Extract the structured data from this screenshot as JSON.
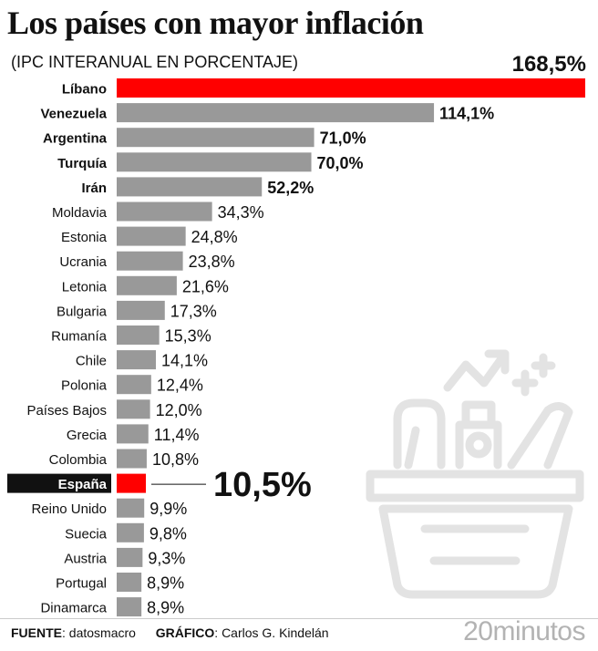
{
  "chart_data": {
    "type": "bar",
    "orientation": "horizontal",
    "title": "Los países con mayor inflación",
    "subtitle": "(IPC INTERANUAL EN PORCENTAJE)",
    "categories": [
      "Líbano",
      "Venezuela",
      "Argentina",
      "Turquía",
      "Irán",
      "Moldavia",
      "Estonia",
      "Ucrania",
      "Letonia",
      "Bulgaria",
      "Rumanía",
      "Chile",
      "Polonia",
      "Países Bajos",
      "Grecia",
      "Colombia",
      "España",
      "Reino Unido",
      "Suecia",
      "Austria",
      "Portugal",
      "Dinamarca"
    ],
    "values": [
      168.5,
      114.1,
      71.0,
      70.0,
      52.2,
      34.3,
      24.8,
      23.8,
      21.6,
      17.3,
      15.3,
      14.1,
      12.4,
      12.0,
      11.4,
      10.8,
      10.5,
      9.9,
      9.8,
      9.3,
      8.9,
      8.9
    ],
    "value_labels": [
      "168,5%",
      "114,1%",
      "71,0%",
      "70,0%",
      "52,2%",
      "34,3%",
      "24,8%",
      "23,8%",
      "21,6%",
      "17,3%",
      "15,3%",
      "14,1%",
      "12,4%",
      "12,0%",
      "11,4%",
      "10,8%",
      "10,5%",
      "9,9%",
      "9,8%",
      "9,3%",
      "8,9%",
      "8,9%"
    ],
    "bold_categories": [
      "Líbano",
      "Venezuela",
      "Argentina",
      "Turquía",
      "Irán",
      "España"
    ],
    "highlight_categories": [
      "Líbano",
      "España"
    ],
    "xlim": [
      0,
      168.5
    ],
    "colors": {
      "default": "#999999",
      "highlight": "#ff0000",
      "text": "#111111",
      "label_bg": "#111111"
    }
  },
  "footer": {
    "source_label": "FUENTE",
    "source_value": "datosmacro",
    "graphic_label": "GRÁFICO",
    "graphic_value": "Carlos G. Kindelán"
  },
  "brand": {
    "name": "20minutos"
  },
  "illustration": {
    "icon": "shopping-basket-rising-prices-icon"
  }
}
